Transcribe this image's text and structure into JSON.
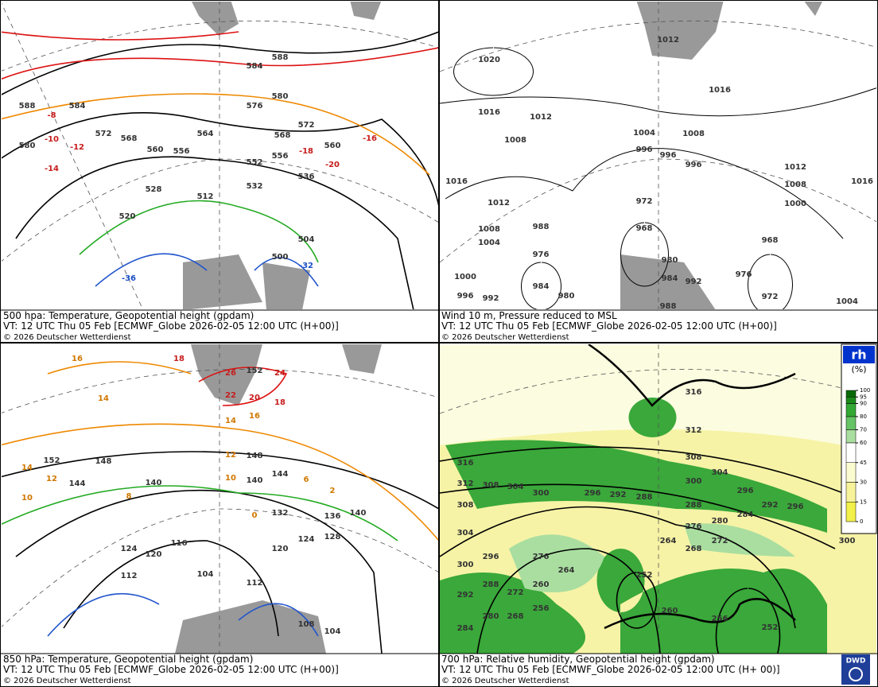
{
  "panels": [
    {
      "caption": [
        "500 hpa: Temperature, Geopotential height (gpdam)",
        "VT: 12 UTC Thu  05 Feb [ECMWF_Globe 2026-02-05 12:00 UTC (H+00)]",
        "© 2026 Deutscher Wetterdienst"
      ],
      "labels": [
        588,
        584,
        580,
        576,
        572,
        568,
        564,
        560,
        556,
        552,
        556,
        560,
        536,
        532,
        528,
        520,
        512,
        504,
        500,
        584,
        572,
        568,
        588,
        580,
        -8,
        -10,
        -12,
        -14,
        -16,
        -18,
        -20,
        -36,
        -32
      ]
    },
    {
      "caption": [
        "Wind 10 m, Pressure reduced to MSL",
        "VT: 12 UTC Thu  05 Feb [ECMWF_Globe 2026-02-05 12:00 UTC (H+00)]",
        "© 2026 Deutscher Wetterdienst"
      ],
      "labels": [
        1020,
        1016,
        1012,
        1008,
        1004,
        1008,
        996,
        996,
        996,
        1016,
        1012,
        1008,
        1000,
        1016,
        1016,
        1012,
        1008,
        1004,
        988,
        976,
        972,
        968,
        968,
        976,
        972,
        980,
        984,
        992,
        988,
        984,
        980,
        1000,
        996,
        992,
        1004,
        1012
      ]
    },
    {
      "caption": [
        "850 hPa:  Temperature, Geopotential height (gpdam)",
        "VT: 12 UTC Thu  05 Feb [ECMWF_Globe 2026-02-05 12:00 UTC (H+00)]",
        "© 2026 Deutscher Wetterdienst"
      ],
      "labels": [
        152,
        148,
        144,
        140,
        148,
        144,
        140,
        132,
        136,
        140,
        128,
        124,
        120,
        116,
        112,
        104,
        124,
        120,
        112,
        108,
        104,
        152,
        26,
        24,
        22,
        20,
        18,
        16,
        14,
        12,
        10,
        16,
        14,
        18,
        14,
        12,
        10,
        8,
        6,
        2,
        0
      ]
    },
    {
      "caption": [
        "700 hPa:  Relative humidity, Geopotential height (gpdam)",
        "VT: 12 UTC Thu  05 Feb [ECMWF_Globe 2026-02-05 12:00 UTC (H+ 00)]",
        "© 2026 Deutscher Wetterdienst"
      ],
      "labels": [
        316,
        312,
        308,
        304,
        300,
        296,
        292,
        288,
        284,
        280,
        276,
        272,
        268,
        264,
        316,
        312,
        308,
        304,
        300,
        296,
        292,
        288,
        308,
        304,
        300,
        296,
        292,
        288,
        284,
        280,
        276,
        272,
        268,
        264,
        260,
        256,
        252,
        260,
        256,
        252,
        296,
        300
      ]
    }
  ],
  "legend": {
    "title": "rh",
    "unit": "(%)",
    "levels": [
      100,
      95,
      90,
      80,
      70,
      60,
      45,
      30,
      15,
      0
    ],
    "colors": [
      "#0a6a0a",
      "#1b8a1b",
      "#34a834",
      "#66c466",
      "#a9dea0",
      "#ffffff",
      "#fbfbd0",
      "#f6f39a",
      "#f2f04a"
    ]
  },
  "logo": "DWD"
}
